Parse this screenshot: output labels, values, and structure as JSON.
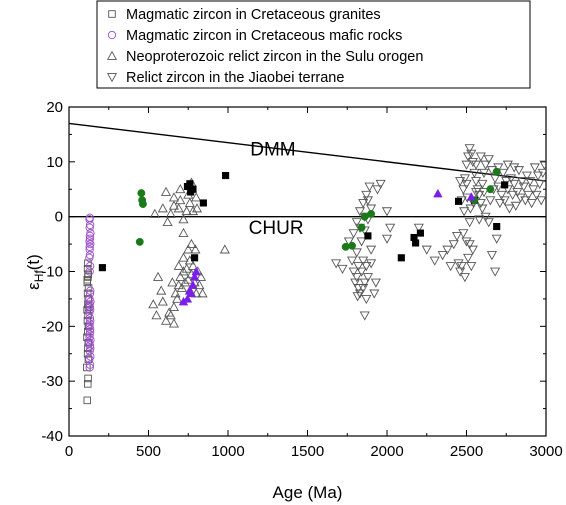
{
  "chart_data": {
    "type": "scatter",
    "xlabel": "Age (Ma)",
    "ylabel": {
      "main": "ε",
      "sub": "Hf",
      "suffix": "(t)"
    },
    "xlim": [
      0,
      3000
    ],
    "ylim": [
      -40,
      20
    ],
    "x_ticks": [
      0,
      500,
      1000,
      1500,
      2000,
      2500,
      3000
    ],
    "y_ticks": [
      -40,
      -30,
      -20,
      -10,
      0,
      10,
      20
    ],
    "grid": false,
    "legend_position": "top",
    "reference_lines": [
      {
        "name": "DMM",
        "x": [
          0,
          3000
        ],
        "y": [
          17,
          6.5
        ],
        "label_at": [
          1140,
          11.2
        ]
      },
      {
        "name": "CHUR",
        "x": [
          0,
          3000
        ],
        "y": [
          0,
          0
        ],
        "label_at": [
          1130,
          -3.2
        ]
      }
    ],
    "series": [
      {
        "name": "Magmatic zircon in Cretaceous granites",
        "marker": "square-open",
        "color": "#555555",
        "points": [
          [
            115,
            -33.5
          ],
          [
            118,
            -30.5
          ],
          [
            120,
            -29.5
          ],
          [
            112,
            -27.5
          ],
          [
            122,
            -26
          ],
          [
            117,
            -25
          ],
          [
            119,
            -24
          ],
          [
            121,
            -23
          ],
          [
            113,
            -22
          ],
          [
            118,
            -21
          ],
          [
            122,
            -20
          ],
          [
            116,
            -19
          ],
          [
            120,
            -18
          ],
          [
            114,
            -17
          ],
          [
            119,
            -16
          ],
          [
            121,
            -15
          ],
          [
            117,
            -14
          ],
          [
            123,
            -13
          ],
          [
            115,
            -12
          ],
          [
            119,
            -11
          ],
          [
            121,
            -10.5
          ],
          [
            117,
            -9.5
          ],
          [
            119,
            -8.5
          ],
          [
            115,
            -11.5
          ],
          [
            123,
            -16.5
          ]
        ]
      },
      {
        "name": "Magmatic zircon in Cretaceous mafic rocks",
        "marker": "circle-open",
        "color": "#9b4dca",
        "points": [
          [
            130,
            -27.5
          ],
          [
            132,
            -27
          ],
          [
            128,
            -26
          ],
          [
            134,
            -25.5
          ],
          [
            130,
            -24.5
          ],
          [
            132,
            -23.5
          ],
          [
            128,
            -23
          ],
          [
            135,
            -22.5
          ],
          [
            130,
            -21.5
          ],
          [
            133,
            -21
          ],
          [
            129,
            -20
          ],
          [
            134,
            -19
          ],
          [
            131,
            -18.5
          ],
          [
            128,
            -17.5
          ],
          [
            133,
            -17
          ],
          [
            130,
            -16
          ],
          [
            135,
            -15.5
          ],
          [
            129,
            -15
          ],
          [
            132,
            -14
          ],
          [
            134,
            -13.5
          ],
          [
            130,
            -10
          ],
          [
            133,
            -9
          ],
          [
            128,
            -7.5
          ],
          [
            132,
            -7
          ],
          [
            130,
            -6
          ],
          [
            134,
            -5
          ],
          [
            129,
            -4.5
          ],
          [
            131,
            -3.5
          ],
          [
            135,
            -3
          ],
          [
            130,
            -2
          ],
          [
            133,
            -1.5
          ],
          [
            129,
            -0.5
          ],
          [
            131,
            -0.2
          ],
          [
            132,
            -4
          ],
          [
            130,
            -5.5
          ],
          [
            134,
            -24
          ],
          [
            129,
            -22
          ],
          [
            133,
            -20.5
          ],
          [
            131,
            -16.5
          ],
          [
            130,
            -19.5
          ]
        ]
      },
      {
        "name": "Neoproterozoic relict zircon in the Sulu orogen",
        "marker": "triangle-up-open",
        "color": "#555555",
        "points": [
          [
            540,
            0.5
          ],
          [
            590,
            1.5
          ],
          [
            620,
            -1
          ],
          [
            640,
            0.5
          ],
          [
            660,
            2
          ],
          [
            690,
            1.5
          ],
          [
            720,
            -0.5
          ],
          [
            740,
            1
          ],
          [
            760,
            2.5
          ],
          [
            780,
            1
          ],
          [
            805,
            1.5
          ],
          [
            700,
            3
          ],
          [
            610,
            4.5
          ],
          [
            660,
            3.5
          ],
          [
            700,
            5
          ],
          [
            750,
            4
          ],
          [
            770,
            6.2
          ],
          [
            800,
            3.5
          ],
          [
            580,
            -13.5
          ],
          [
            590,
            -15.5
          ],
          [
            610,
            -19
          ],
          [
            640,
            -18
          ],
          [
            660,
            -16.5
          ],
          [
            670,
            -14
          ],
          [
            690,
            -12.5
          ],
          [
            700,
            -11
          ],
          [
            710,
            -13
          ],
          [
            720,
            -10
          ],
          [
            730,
            -12
          ],
          [
            740,
            -9.5
          ],
          [
            750,
            -11.5
          ],
          [
            760,
            -8
          ],
          [
            770,
            -10.5
          ],
          [
            780,
            -9
          ],
          [
            790,
            -12
          ],
          [
            690,
            -9
          ],
          [
            720,
            -7.5
          ],
          [
            750,
            -6
          ],
          [
            770,
            -5
          ],
          [
            795,
            -6
          ],
          [
            810,
            -10
          ],
          [
            820,
            -12.5
          ],
          [
            830,
            -11
          ],
          [
            840,
            -14
          ],
          [
            680,
            -15
          ],
          [
            650,
            -12
          ],
          [
            760,
            -13.5
          ],
          [
            660,
            -19.5
          ],
          [
            630,
            -17.5
          ],
          [
            550,
            -18
          ],
          [
            530,
            -16
          ],
          [
            560,
            -11
          ],
          [
            980,
            -6
          ],
          [
            720,
            -3
          ],
          [
            800,
            -14
          ]
        ]
      },
      {
        "name": "Relict zircon in the Jiaobei terrane",
        "marker": "triangle-down-open",
        "color": "#555555",
        "points": [
          [
            1680,
            -8.5
          ],
          [
            1720,
            -9.5
          ],
          [
            1760,
            -4.5
          ],
          [
            1780,
            -8
          ],
          [
            1790,
            -10
          ],
          [
            1800,
            -12
          ],
          [
            1810,
            -11
          ],
          [
            1820,
            -13
          ],
          [
            1830,
            -14
          ],
          [
            1840,
            -10
          ],
          [
            1850,
            -8
          ],
          [
            1860,
            -12
          ],
          [
            1870,
            -9
          ],
          [
            1880,
            -11
          ],
          [
            1900,
            -6
          ],
          [
            1920,
            -14
          ],
          [
            1860,
            -18
          ],
          [
            1810,
            -6.5
          ],
          [
            1840,
            -4.5
          ],
          [
            1860,
            -2.5
          ],
          [
            1880,
            -0.5
          ],
          [
            1830,
            1
          ],
          [
            1850,
            2.5
          ],
          [
            1870,
            4
          ],
          [
            1890,
            5.5
          ],
          [
            1880,
            3
          ],
          [
            1900,
            1.5
          ],
          [
            1860,
            0
          ],
          [
            1830,
            -2
          ],
          [
            1810,
            -1
          ],
          [
            1790,
            -3
          ],
          [
            1820,
            -9
          ],
          [
            1870,
            -15
          ],
          [
            1900,
            -8.5
          ],
          [
            1850,
            -13
          ],
          [
            1815,
            -14.5
          ],
          [
            1930,
            -12
          ],
          [
            2000,
            -4
          ],
          [
            2020,
            -2
          ],
          [
            2000,
            1
          ],
          [
            1940,
            5
          ],
          [
            1960,
            6
          ],
          [
            2200,
            -2
          ],
          [
            2250,
            -6
          ],
          [
            2300,
            -8
          ],
          [
            2350,
            -7
          ],
          [
            2400,
            -9
          ],
          [
            2450,
            -8.5
          ],
          [
            2460,
            -10
          ],
          [
            2480,
            -3
          ],
          [
            2500,
            -4.5
          ],
          [
            2520,
            -5
          ],
          [
            2540,
            -6
          ],
          [
            2510,
            -7.5
          ],
          [
            2530,
            -9
          ],
          [
            2490,
            -11
          ],
          [
            2420,
            -5
          ],
          [
            2380,
            -6
          ],
          [
            2440,
            -3.5
          ],
          [
            2470,
            3
          ],
          [
            2480,
            5
          ],
          [
            2490,
            7
          ],
          [
            2500,
            9.5
          ],
          [
            2510,
            11
          ],
          [
            2520,
            12.5
          ],
          [
            2530,
            11.5
          ],
          [
            2540,
            10
          ],
          [
            2550,
            8
          ],
          [
            2560,
            6.5
          ],
          [
            2570,
            5
          ],
          [
            2580,
            4
          ],
          [
            2590,
            2.5
          ],
          [
            2600,
            6
          ],
          [
            2610,
            8
          ],
          [
            2620,
            9.5
          ],
          [
            2640,
            10.5
          ],
          [
            2660,
            8.5
          ],
          [
            2680,
            7
          ],
          [
            2700,
            5.5
          ],
          [
            2720,
            4
          ],
          [
            2740,
            3
          ],
          [
            2760,
            5
          ],
          [
            2780,
            7
          ],
          [
            2800,
            6
          ],
          [
            2820,
            4.5
          ],
          [
            2840,
            3.5
          ],
          [
            2860,
            5.5
          ],
          [
            2880,
            7.5
          ],
          [
            2900,
            6.5
          ],
          [
            2920,
            5
          ],
          [
            2940,
            4
          ],
          [
            2960,
            6
          ],
          [
            2980,
            8
          ],
          [
            2990,
            9.5
          ],
          [
            2970,
            3
          ],
          [
            2950,
            7.5
          ],
          [
            2930,
            9
          ],
          [
            2910,
            2.5
          ],
          [
            2890,
            4
          ],
          [
            2870,
            3
          ],
          [
            2850,
            6.5
          ],
          [
            2830,
            8.5
          ],
          [
            2810,
            2
          ],
          [
            2790,
            4
          ],
          [
            2770,
            1.5
          ],
          [
            2750,
            6.5
          ],
          [
            2730,
            8
          ],
          [
            2710,
            2.5
          ],
          [
            2690,
            -4
          ],
          [
            2680,
            -10
          ],
          [
            2660,
            -7
          ],
          [
            2640,
            -1
          ],
          [
            2620,
            0
          ],
          [
            2600,
            1.5
          ],
          [
            2580,
            -0.5
          ],
          [
            2560,
            4.5
          ],
          [
            2545,
            2.5
          ],
          [
            2525,
            1.5
          ],
          [
            2505,
            3.5
          ],
          [
            2485,
            1
          ],
          [
            2650,
            3
          ],
          [
            2670,
            5
          ],
          [
            2700,
            9
          ],
          [
            2760,
            9.5
          ],
          [
            2800,
            9
          ],
          [
            2560,
            9.5
          ],
          [
            2590,
            11
          ],
          [
            2610,
            4.5
          ],
          [
            2500,
            6
          ],
          [
            2460,
            6.5
          ],
          [
            2470,
            -9
          ],
          [
            2520,
            -1
          ]
        ]
      },
      {
        "name": "",
        "marker": "square-filled",
        "color": "#000000",
        "points": [
          [
            210,
            -9.3
          ],
          [
            745,
            5.5
          ],
          [
            760,
            6
          ],
          [
            765,
            4.5
          ],
          [
            780,
            5
          ],
          [
            790,
            -7.5
          ],
          [
            845,
            2.5
          ],
          [
            985,
            7.5
          ],
          [
            1880,
            -3.5
          ],
          [
            2090,
            -7.5
          ],
          [
            2170,
            -3.8
          ],
          [
            2180,
            -4.8
          ],
          [
            2210,
            -3
          ],
          [
            2450,
            2.8
          ],
          [
            2550,
            3
          ],
          [
            2690,
            -1.8
          ],
          [
            2740,
            5.8
          ]
        ]
      },
      {
        "name": "",
        "marker": "circle-filled",
        "color": "#1a7a1a",
        "points": [
          [
            445,
            -4.6
          ],
          [
            455,
            4.3
          ],
          [
            460,
            3
          ],
          [
            465,
            2.3
          ],
          [
            1740,
            -5.5
          ],
          [
            1780,
            -5.3
          ],
          [
            1840,
            -2
          ],
          [
            1860,
            0
          ],
          [
            1900,
            0.5
          ],
          [
            2550,
            3
          ],
          [
            2650,
            5
          ],
          [
            2690,
            8.2
          ]
        ]
      },
      {
        "name": "",
        "marker": "triangle-up-filled",
        "color": "#7b1fe8",
        "points": [
          [
            720,
            -15.5
          ],
          [
            745,
            -15
          ],
          [
            760,
            -13.5
          ],
          [
            780,
            -12.5
          ],
          [
            790,
            -11
          ],
          [
            800,
            -10
          ],
          [
            770,
            -14
          ],
          [
            2320,
            4.2
          ],
          [
            2530,
            3.6
          ]
        ]
      }
    ]
  }
}
